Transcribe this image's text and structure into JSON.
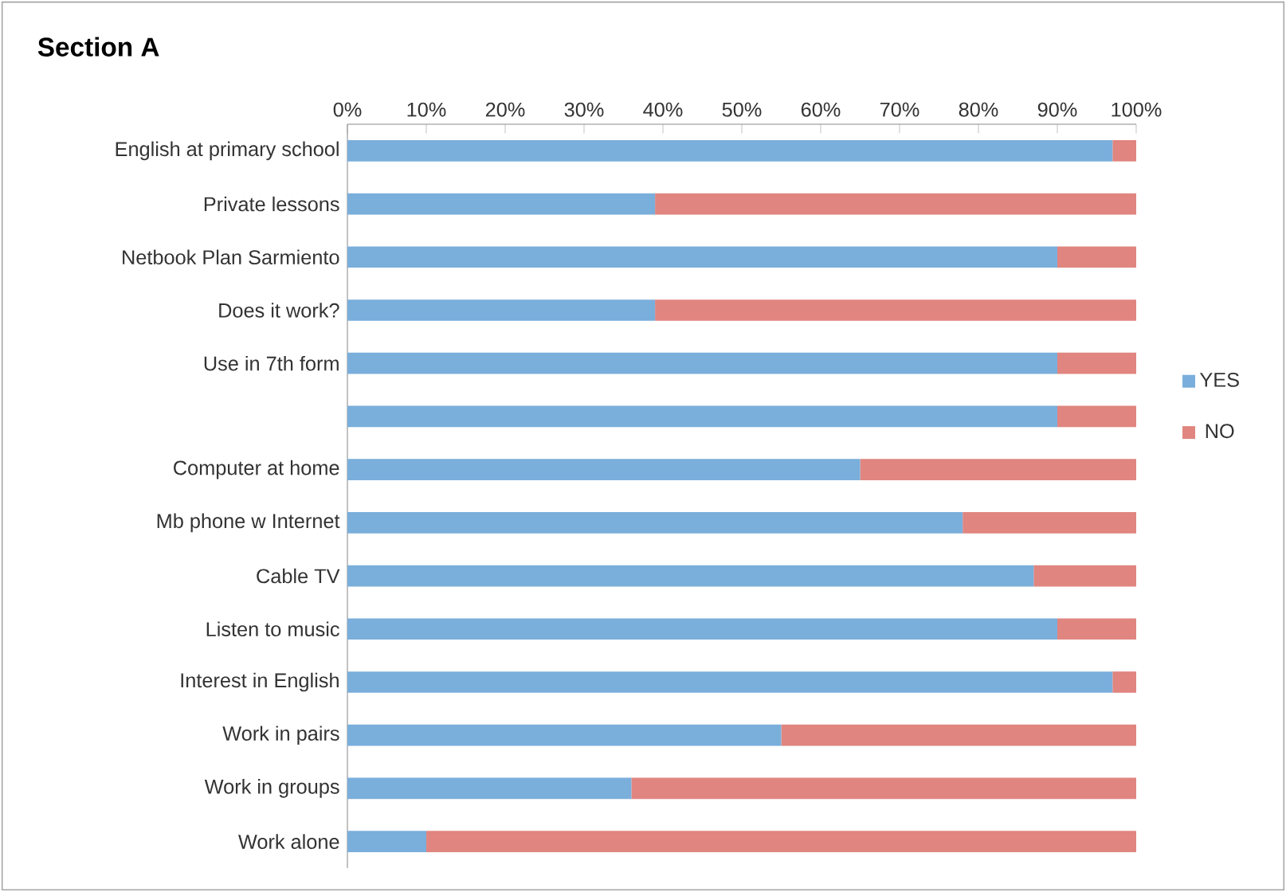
{
  "chart_data": {
    "type": "bar",
    "orientation": "horizontal",
    "stacked": true,
    "title": "Section A",
    "categories": [
      "English at primary school",
      "Private lessons",
      "Netbook Plan Sarmiento",
      "Does it work?",
      "Use in 7th form",
      null,
      "Computer at home",
      "Mb phone w Internet",
      "Cable TV",
      "Listen to music",
      "Interest in English",
      "Work in pairs",
      "Work in groups",
      "Work alone"
    ],
    "series": [
      {
        "name": "YES",
        "color": "#7aaedb",
        "values": [
          97,
          39,
          90,
          39,
          90,
          90,
          65,
          78,
          87,
          90,
          97,
          55,
          36,
          10
        ]
      },
      {
        "name": "NO",
        "color": "#e0857f",
        "values": [
          3,
          61,
          10,
          61,
          10,
          10,
          35,
          22,
          13,
          10,
          3,
          45,
          64,
          90
        ]
      }
    ],
    "xlim": [
      0,
      100
    ],
    "xticks": [
      {
        "value": 0,
        "label": "0%"
      },
      {
        "value": 10,
        "label": "10%"
      },
      {
        "value": 20,
        "label": "20%"
      },
      {
        "value": 30,
        "label": "30%"
      },
      {
        "value": 40,
        "label": "40%"
      },
      {
        "value": 50,
        "label": "50%"
      },
      {
        "value": 60,
        "label": "60%"
      },
      {
        "value": 70,
        "label": "70%"
      },
      {
        "value": 80,
        "label": "80%"
      },
      {
        "value": 90,
        "label": "90%"
      },
      {
        "value": 100,
        "label": "100%"
      }
    ],
    "legend": "right"
  }
}
